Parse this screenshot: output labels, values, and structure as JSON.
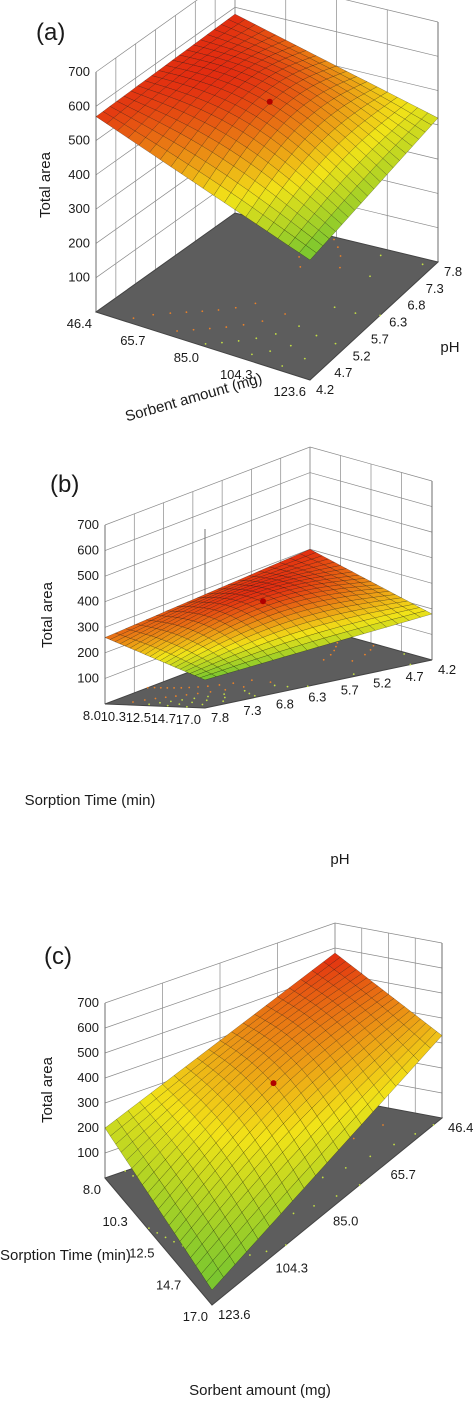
{
  "chart_data": [
    {
      "panel": "(a)",
      "type": "surface3d",
      "zlabel": "Total area",
      "zticks": [
        100,
        200,
        300,
        400,
        500,
        600,
        700
      ],
      "x": {
        "label": "Sorbent amount (mg)",
        "ticks": [
          "46.4",
          "65.7",
          "85.0",
          "104.3",
          "123.6"
        ]
      },
      "y": {
        "label": "pH",
        "ticks": [
          "4.2",
          "4.7",
          "5.2",
          "5.7",
          "6.3",
          "6.8",
          "7.3",
          "7.8"
        ]
      },
      "grid": true,
      "surface_corners": {
        "left": 570,
        "back": 580,
        "right": 420,
        "front": 350
      },
      "peak_point": "red dot near surface center",
      "colormap": "green to yellow to red (higher)"
    },
    {
      "panel": "(b)",
      "type": "surface3d",
      "zlabel": "Total area",
      "zticks": [
        100,
        200,
        300,
        400,
        500,
        600,
        700
      ],
      "x": {
        "label": "Sorption Time (min)",
        "ticks": [
          "8.0",
          "10.3",
          "12.5",
          "14.7",
          "17.0"
        ]
      },
      "y": {
        "label": "pH",
        "ticks": [
          "7.8",
          "7.3",
          "6.8",
          "6.3",
          "5.7",
          "5.2",
          "4.7",
          "4.2"
        ]
      },
      "grid": true,
      "surface_corners": {
        "left": 260,
        "back": 300,
        "right": 180,
        "front": 110
      },
      "peak_point": "red dot near surface center",
      "colormap": "green to yellow to red (higher)"
    },
    {
      "panel": "(c)",
      "type": "surface3d",
      "zlabel": "Total area",
      "zticks": [
        100,
        200,
        300,
        400,
        500,
        600,
        700
      ],
      "x": {
        "label": "Sorption Time (min)",
        "ticks": [
          "8.0",
          "10.3",
          "12.5",
          "14.7",
          "17.0"
        ]
      },
      "y": {
        "label": "Sorbent amount (mg)",
        "ticks": [
          "123.6",
          "104.3",
          "85.0",
          "65.7",
          "46.4"
        ]
      },
      "grid": true,
      "surface_corners": {
        "left": 200,
        "back": 580,
        "right": 330,
        "front": 60
      },
      "peak_point": "red dot near surface center",
      "colormap": "green to yellow to red (higher)"
    }
  ],
  "colors": {
    "floor": "#5d5d5d",
    "low": "#3fb83a",
    "mid": "#f2e318",
    "high": "#e22a10",
    "grid": "#8a8a8a",
    "mesh": "#000000",
    "contour_low": "#c2de44",
    "contour_high": "#e9812a"
  }
}
